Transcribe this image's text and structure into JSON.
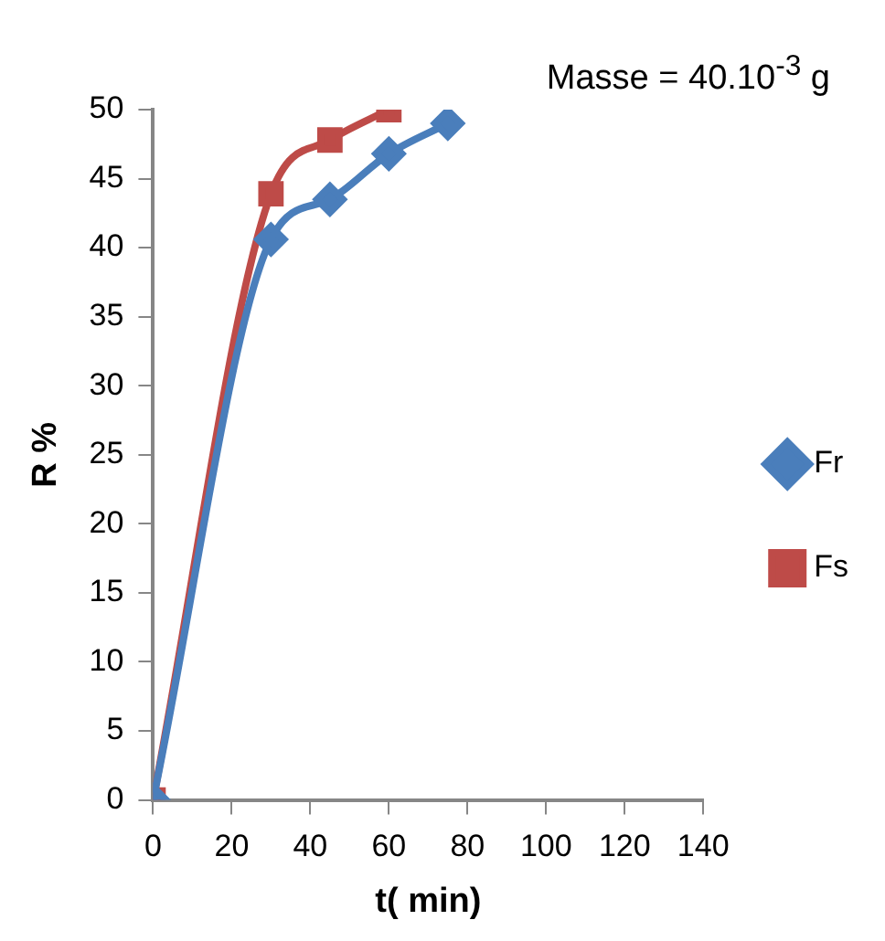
{
  "chart_data": {
    "type": "line",
    "xlabel": "t( min)",
    "ylabel": "R %",
    "annotations": [
      "Masse = 40.10$^{-3}$ g"
    ],
    "xlim": [
      0,
      140
    ],
    "xticks": [
      0,
      20,
      40,
      60,
      80,
      100,
      120,
      140
    ],
    "ylim": [
      0,
      50
    ],
    "yticks": [
      0,
      5,
      10,
      15,
      20,
      25,
      30,
      35,
      40,
      45,
      50
    ],
    "grid": false,
    "legend": "right",
    "series": [
      {
        "name": "Fr",
        "color": "#4a7ebb",
        "marker": "diamond",
        "x": [
          0,
          30,
          45,
          60,
          75
        ],
        "values": [
          0,
          40.6,
          43.5,
          46.8,
          49
        ]
      },
      {
        "name": "Fs",
        "color": "#be4b48",
        "marker": "square",
        "x": [
          0,
          30,
          45,
          60
        ],
        "values": [
          0,
          43.9,
          47.8,
          50
        ]
      }
    ]
  }
}
